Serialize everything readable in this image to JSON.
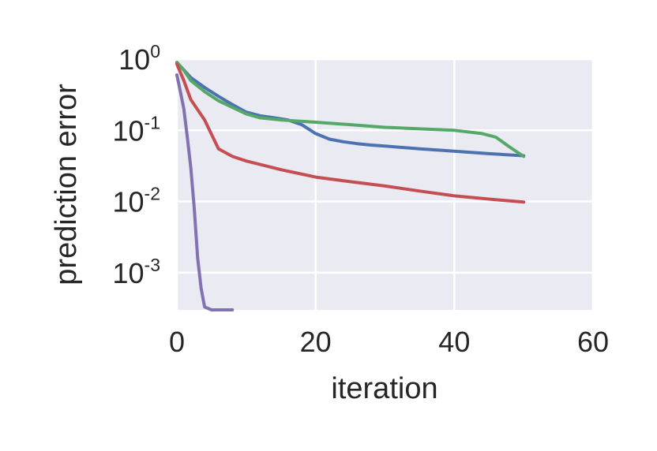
{
  "chart_data": {
    "type": "line",
    "title": "",
    "xlabel": "iteration",
    "ylabel": "prediction error",
    "xlim": [
      0,
      60
    ],
    "ylim": [
      0.0003,
      1.0
    ],
    "yscale": "log",
    "grid": true,
    "plot_background": "#EAEAF2",
    "grid_color": "#FFFFFF",
    "xticks": [
      0,
      20,
      40,
      60
    ],
    "xtick_labels": [
      "0",
      "20",
      "40",
      "60"
    ],
    "yticks": [
      {
        "value": 1,
        "base": "10",
        "exp": "0"
      },
      {
        "value": 0.1,
        "base": "10",
        "exp": "-1"
      },
      {
        "value": 0.01,
        "base": "10",
        "exp": "-2"
      },
      {
        "value": 0.001,
        "base": "10",
        "exp": "-3"
      }
    ],
    "series": [
      {
        "color": "#4C72B0",
        "x": [
          0,
          2,
          4,
          6,
          8,
          10,
          12,
          14,
          16,
          18,
          20,
          22,
          24,
          26,
          28,
          30,
          35,
          40,
          45,
          50
        ],
        "values": [
          0.9,
          0.55,
          0.4,
          0.3,
          0.23,
          0.18,
          0.16,
          0.15,
          0.14,
          0.12,
          0.09,
          0.075,
          0.069,
          0.065,
          0.062,
          0.06,
          0.055,
          0.051,
          0.047,
          0.044
        ]
      },
      {
        "color": "#55A868",
        "x": [
          0,
          1,
          2,
          4,
          6,
          8,
          10,
          12,
          15,
          20,
          25,
          30,
          35,
          40,
          44,
          46,
          48,
          50
        ],
        "values": [
          0.9,
          0.7,
          0.5,
          0.35,
          0.26,
          0.21,
          0.17,
          0.15,
          0.14,
          0.13,
          0.12,
          0.11,
          0.105,
          0.1,
          0.09,
          0.08,
          0.058,
          0.043
        ]
      },
      {
        "color": "#C44E52",
        "x": [
          0,
          1,
          2,
          4,
          6,
          8,
          10,
          15,
          20,
          25,
          30,
          35,
          40,
          45,
          50
        ],
        "values": [
          0.85,
          0.5,
          0.27,
          0.14,
          0.055,
          0.043,
          0.037,
          0.028,
          0.022,
          0.019,
          0.0165,
          0.014,
          0.012,
          0.0108,
          0.0098
        ]
      },
      {
        "color": "#8172B2",
        "x": [
          0,
          0.5,
          1,
          1.5,
          2,
          2.5,
          3,
          3.5,
          4,
          5,
          6,
          8
        ],
        "values": [
          0.6,
          0.35,
          0.2,
          0.08,
          0.03,
          0.008,
          0.0016,
          0.0006,
          0.00033,
          0.0003,
          0.0003,
          0.0003
        ]
      }
    ]
  }
}
